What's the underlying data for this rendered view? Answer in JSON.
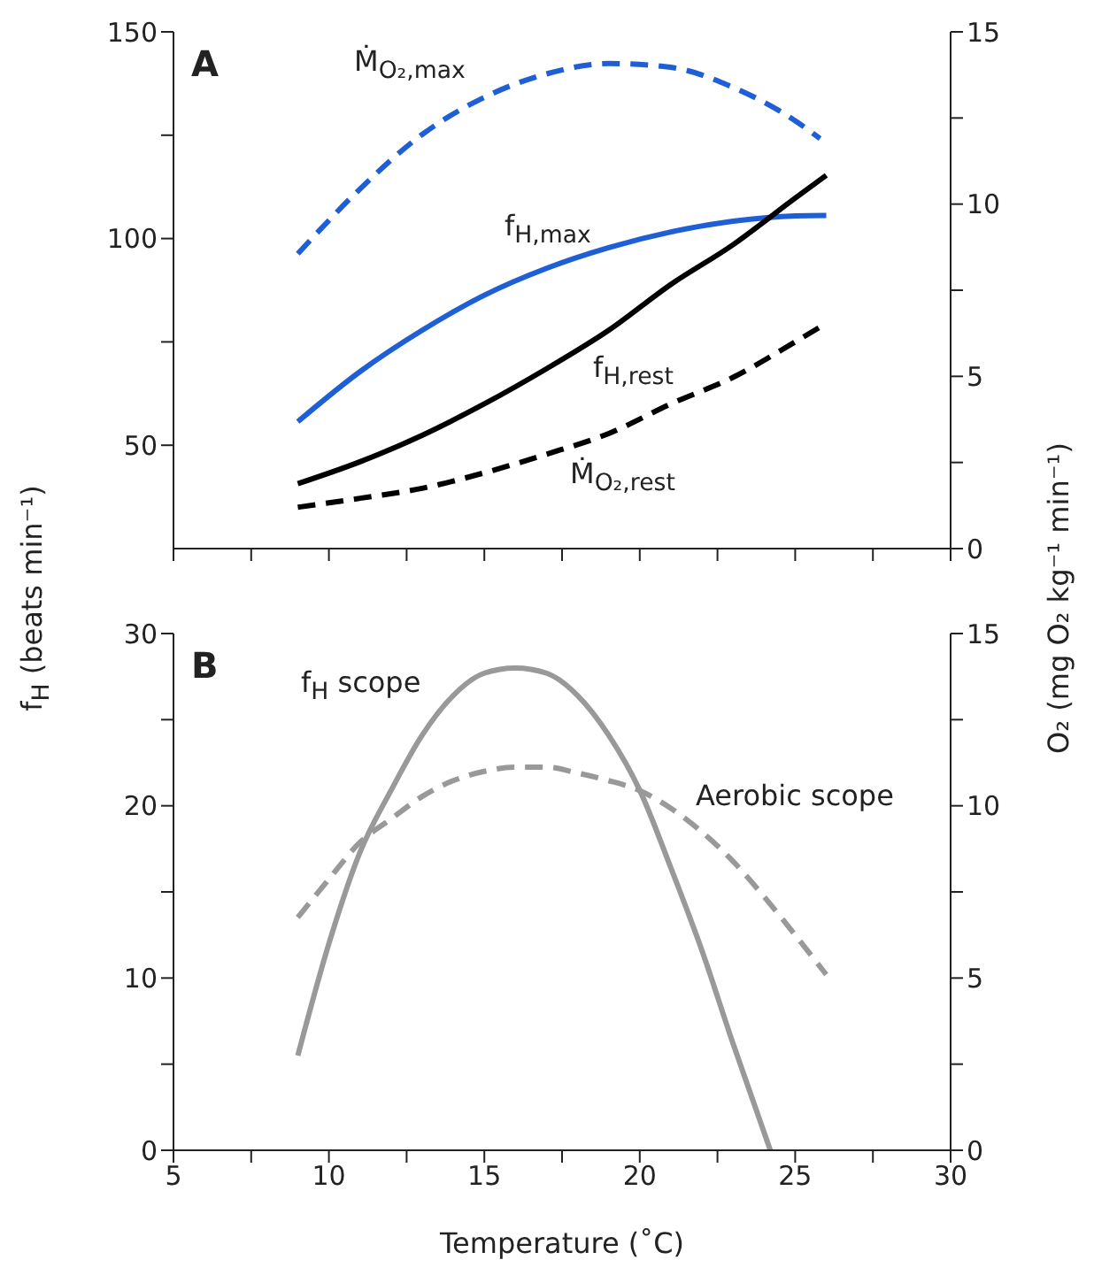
{
  "chart_data": [
    {
      "type": "line",
      "title": "A",
      "ylabel": "f$_{H}$ (beats min⁻¹)",
      "y2label": "O₂ (mg O₂ kg⁻¹ min⁻¹)",
      "xlim": [
        5,
        30
      ],
      "xticks": [
        {
          "value": 5,
          "label": null
        },
        {
          "value": 7.5,
          "label": null
        },
        {
          "value": 10,
          "label": null
        },
        {
          "value": 12.5,
          "label": null
        },
        {
          "value": 15,
          "label": null
        },
        {
          "value": 17.5,
          "label": null
        },
        {
          "value": 20,
          "label": null
        },
        {
          "value": 22.5,
          "label": null
        },
        {
          "value": 25,
          "label": null
        },
        {
          "value": 27.5,
          "label": null
        },
        {
          "value": 30,
          "label": null
        }
      ],
      "ylim": [
        25,
        150
      ],
      "yticks": [
        50,
        {
          "value": 75,
          "label": null
        },
        100,
        {
          "value": 125,
          "label": null
        },
        150
      ],
      "y2lim": [
        0,
        15
      ],
      "y2ticks": [
        0,
        {
          "value": 2.5,
          "label": null
        },
        5,
        {
          "value": 7.5,
          "label": null
        },
        10,
        {
          "value": 12.5,
          "label": null
        },
        15
      ],
      "tick_labels": "y",
      "marker": "none",
      "series": [
        {
          "name": "Ṁ$_{O₂,max}$",
          "color": "#1f5fd6",
          "axis": "y2",
          "line_style": "dashed",
          "x": [
            9,
            11,
            13,
            15,
            17,
            19,
            21,
            23,
            25,
            25.8
          ],
          "values": [
            8.56,
            10.44,
            12.02,
            13.1,
            13.78,
            14.08,
            13.97,
            13.39,
            12.42,
            11.9
          ]
        },
        {
          "name": "f$_{H,max}$",
          "color": "#1f5fd6",
          "axis": "y",
          "line_style": "solid",
          "x": [
            9,
            11,
            13,
            15,
            17,
            19,
            21,
            23,
            25,
            26
          ],
          "values": [
            55.7,
            67.8,
            77.8,
            86.3,
            92.8,
            97.8,
            101.6,
            104.2,
            105.5,
            105.6
          ]
        },
        {
          "name": "f$_{H,rest}$",
          "color": "#000000",
          "axis": "y",
          "line_style": "solid",
          "x": [
            9,
            11,
            13,
            15,
            17,
            19,
            21,
            23,
            25,
            26
          ],
          "values": [
            40.7,
            46.0,
            52.4,
            60.0,
            68.5,
            77.8,
            88.9,
            98.5,
            109.8,
            115.3
          ]
        },
        {
          "name": "Ṁ$_{O₂,rest}$",
          "color": "#000000",
          "axis": "y2",
          "line_style": "dashed",
          "x": [
            9,
            11,
            13,
            15,
            17,
            19,
            21,
            23,
            25,
            26
          ],
          "values": [
            1.2,
            1.46,
            1.75,
            2.2,
            2.74,
            3.34,
            4.2,
            4.97,
            6.0,
            6.54
          ]
        }
      ]
    },
    {
      "type": "line",
      "title": "B",
      "xlabel": "Temperature (˚C)",
      "xlim": [
        5,
        30
      ],
      "xticks": [
        5,
        {
          "value": 7.5,
          "label": null
        },
        10,
        {
          "value": 12.5,
          "label": null
        },
        15,
        {
          "value": 17.5,
          "label": null
        },
        20,
        {
          "value": 22.5,
          "label": null
        },
        25,
        {
          "value": 27.5,
          "label": null
        },
        30
      ],
      "ylim": [
        0,
        30
      ],
      "yticks": [
        0,
        {
          "value": 5,
          "label": null
        },
        10,
        {
          "value": 15,
          "label": null
        },
        20,
        {
          "value": 25,
          "label": null
        },
        30
      ],
      "y2lim": [
        0,
        15
      ],
      "y2ticks": [
        0,
        {
          "value": 2.5,
          "label": null
        },
        5,
        {
          "value": 7.5,
          "label": null
        },
        10,
        {
          "value": 12.5,
          "label": null
        },
        15
      ],
      "marker": "none",
      "series": [
        {
          "name": "f$_{H}$ scope",
          "color": "#999999",
          "axis": "y",
          "line_style": "solid",
          "x": [
            9,
            10,
            11,
            12,
            13,
            14,
            15,
            16,
            17,
            18,
            19,
            20,
            21,
            22,
            23,
            24.2
          ],
          "values": [
            5.5,
            12.0,
            17.3,
            20.9,
            24.1,
            26.4,
            27.7,
            28.0,
            27.7,
            26.4,
            24.1,
            20.9,
            16.4,
            11.6,
            6.2,
            0
          ]
        },
        {
          "name": "Aerobic scope",
          "color": "#999999",
          "axis": "y2",
          "line_style": "dashed",
          "x": [
            9,
            10,
            11,
            12,
            13,
            14,
            15,
            16,
            17,
            18,
            19,
            20,
            21,
            22,
            23,
            24,
            25,
            26
          ],
          "values": [
            6.76,
            7.87,
            8.94,
            9.62,
            10.27,
            10.73,
            11.0,
            11.12,
            11.12,
            10.95,
            10.73,
            10.44,
            9.93,
            9.24,
            8.39,
            7.36,
            6.25,
            5.1
          ]
        }
      ]
    }
  ]
}
